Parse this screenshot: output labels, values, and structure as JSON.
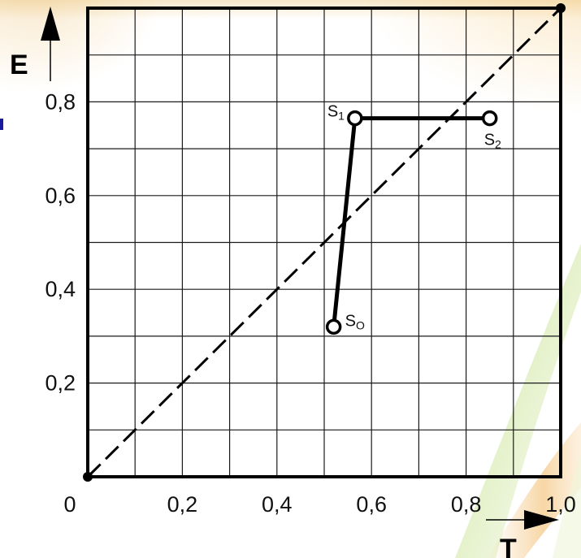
{
  "chart_data": {
    "type": "line",
    "xlabel": "T",
    "ylabel": "E",
    "xlim": [
      0,
      1.0
    ],
    "ylim": [
      0,
      1.0
    ],
    "grid": true,
    "x_ticks": [
      {
        "value": 0,
        "label": "0"
      },
      {
        "value": 0.2,
        "label": "0,2"
      },
      {
        "value": 0.4,
        "label": "0,4"
      },
      {
        "value": 0.6,
        "label": "0,6"
      },
      {
        "value": 0.8,
        "label": "0,8"
      },
      {
        "value": 1.0,
        "label": "1,0"
      }
    ],
    "y_ticks": [
      {
        "value": 0.2,
        "label": "0,2"
      },
      {
        "value": 0.4,
        "label": "0,4"
      },
      {
        "value": 0.6,
        "label": "0,6"
      },
      {
        "value": 0.8,
        "label": "0,8"
      }
    ],
    "diagonal": {
      "style": "dashed",
      "from": [
        0,
        0
      ],
      "to": [
        1.0,
        1.0
      ]
    },
    "corner_points": [
      {
        "x": 0,
        "y": 0
      },
      {
        "x": 1.0,
        "y": 1.0
      }
    ],
    "path": [
      {
        "label": "S",
        "sub": "O",
        "x": 0.52,
        "y": 0.32
      },
      {
        "label": "S",
        "sub": "1",
        "x": 0.565,
        "y": 0.765
      },
      {
        "label": "S",
        "sub": "2",
        "x": 0.85,
        "y": 0.765
      }
    ]
  },
  "colors": {
    "line": "#000000",
    "marker_fill": "#ffffff",
    "background_accent": "#f5c878",
    "left_bar": "#1a1aa0"
  }
}
